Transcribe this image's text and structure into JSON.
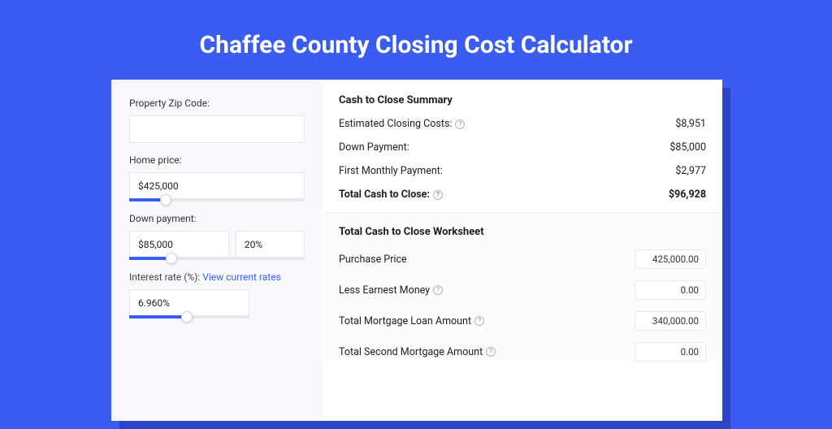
{
  "colors": {
    "page_bg": "#3a5cf0",
    "card_shadow": "#2a45c8",
    "card_bg": "#ffffff",
    "left_bg": "#f7f9fc",
    "input_border": "#e6e8ec",
    "slider_fill": "#3a5cf0",
    "link": "#3a5cf0"
  },
  "title": "Chaffee County Closing Cost Calculator",
  "left": {
    "zip": {
      "label": "Property Zip Code:",
      "value": ""
    },
    "home_price": {
      "label": "Home price:",
      "value": "$425,000",
      "slider_pct": 21
    },
    "down_payment": {
      "label": "Down payment:",
      "value": "$85,000",
      "pct_value": "20%",
      "slider_pct": 24
    },
    "interest": {
      "label_prefix": "Interest rate (%): ",
      "link_text": "View current rates",
      "value": "6.960%",
      "slider_pct": 48
    }
  },
  "summary": {
    "title": "Cash to Close Summary",
    "rows": [
      {
        "label": "Estimated Closing Costs:",
        "help": true,
        "value": "$8,951",
        "bold": false
      },
      {
        "label": "Down Payment:",
        "help": false,
        "value": "$85,000",
        "bold": false
      },
      {
        "label": "First Monthly Payment:",
        "help": false,
        "value": "$2,977",
        "bold": false
      },
      {
        "label": "Total Cash to Close:",
        "help": true,
        "value": "$96,928",
        "bold": true
      }
    ]
  },
  "worksheet": {
    "title": "Total Cash to Close Worksheet",
    "rows": [
      {
        "label": "Purchase Price",
        "help": false,
        "value": "425,000.00"
      },
      {
        "label": "Less Earnest Money",
        "help": true,
        "value": "0.00"
      },
      {
        "label": "Total Mortgage Loan Amount",
        "help": true,
        "value": "340,000.00"
      },
      {
        "label": "Total Second Mortgage Amount",
        "help": true,
        "value": "0.00"
      }
    ]
  }
}
